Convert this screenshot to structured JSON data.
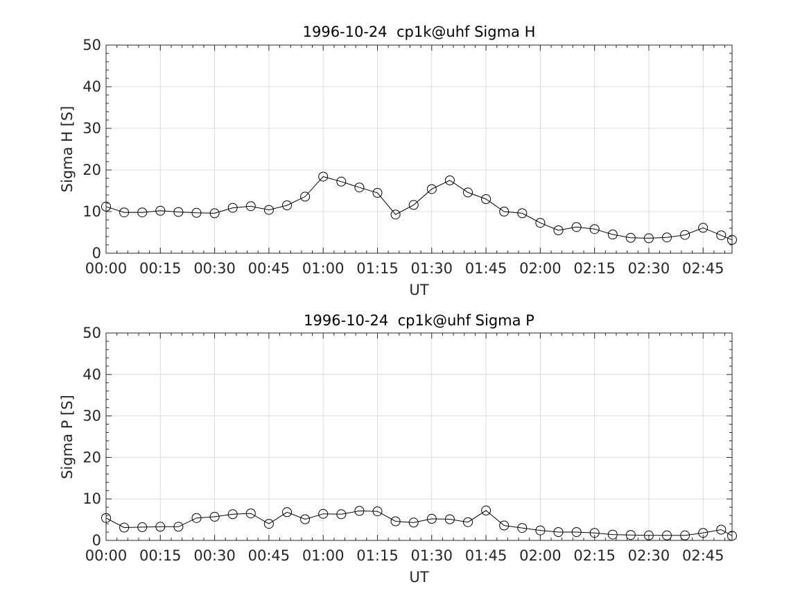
{
  "chart_data": [
    {
      "type": "line",
      "title": "1996-10-24  cp1k@uhf Sigma H",
      "xlabel": "UT",
      "ylabel": "Sigma H [S]",
      "ylim": [
        0,
        50
      ],
      "yticks": [
        "0",
        "10",
        "20",
        "30",
        "40",
        "50"
      ],
      "xlim": [
        "00:00",
        "02:53"
      ],
      "xticks": [
        "00:00",
        "00:15",
        "00:30",
        "00:45",
        "01:00",
        "01:15",
        "01:30",
        "01:45",
        "02:00",
        "02:15",
        "02:30",
        "02:45"
      ],
      "grid": true,
      "marker": "open-circle",
      "x": [
        "00:00",
        "00:05",
        "00:10",
        "00:15",
        "00:20",
        "00:25",
        "00:30",
        "00:35",
        "00:40",
        "00:45",
        "00:50",
        "00:55",
        "01:00",
        "01:05",
        "01:10",
        "01:15",
        "01:20",
        "01:25",
        "01:30",
        "01:35",
        "01:40",
        "01:45",
        "01:50",
        "01:55",
        "02:00",
        "02:05",
        "02:10",
        "02:15",
        "02:20",
        "02:25",
        "02:30",
        "02:35",
        "02:40",
        "02:45",
        "02:50",
        "02:53"
      ],
      "values": [
        11.2,
        9.8,
        9.8,
        10.2,
        9.9,
        9.7,
        9.6,
        10.9,
        11.3,
        10.4,
        11.5,
        13.6,
        18.4,
        17.2,
        15.8,
        14.5,
        9.3,
        11.6,
        15.4,
        17.5,
        14.6,
        13.0,
        10.0,
        9.6,
        7.3,
        5.5,
        6.3,
        5.8,
        4.5,
        3.7,
        3.6,
        3.8,
        4.4,
        6.1,
        4.3,
        3.2
      ]
    },
    {
      "type": "line",
      "title": "1996-10-24  cp1k@uhf Sigma P",
      "xlabel": "UT",
      "ylabel": "Sigma P [S]",
      "ylim": [
        0,
        50
      ],
      "yticks": [
        "0",
        "10",
        "20",
        "30",
        "40",
        "50"
      ],
      "xlim": [
        "00:00",
        "02:53"
      ],
      "xticks": [
        "00:00",
        "00:15",
        "00:30",
        "00:45",
        "01:00",
        "01:15",
        "01:30",
        "01:45",
        "02:00",
        "02:15",
        "02:30",
        "02:45"
      ],
      "grid": true,
      "marker": "open-circle",
      "x": [
        "00:00",
        "00:05",
        "00:10",
        "00:15",
        "00:20",
        "00:25",
        "00:30",
        "00:35",
        "00:40",
        "00:45",
        "00:50",
        "00:55",
        "01:00",
        "01:05",
        "01:10",
        "01:15",
        "01:20",
        "01:25",
        "01:30",
        "01:35",
        "01:40",
        "01:45",
        "01:50",
        "01:55",
        "02:00",
        "02:05",
        "02:10",
        "02:15",
        "02:20",
        "02:25",
        "02:30",
        "02:35",
        "02:40",
        "02:45",
        "02:50",
        "02:53"
      ],
      "values": [
        5.4,
        3.1,
        3.2,
        3.3,
        3.3,
        5.4,
        5.7,
        6.3,
        6.5,
        4.0,
        6.8,
        5.1,
        6.4,
        6.3,
        7.1,
        7.0,
        4.6,
        4.3,
        5.2,
        5.1,
        4.4,
        7.2,
        3.6,
        3.0,
        2.4,
        2.0,
        2.0,
        1.8,
        1.4,
        1.3,
        1.2,
        1.2,
        1.2,
        1.8,
        2.6,
        1.1
      ]
    }
  ]
}
